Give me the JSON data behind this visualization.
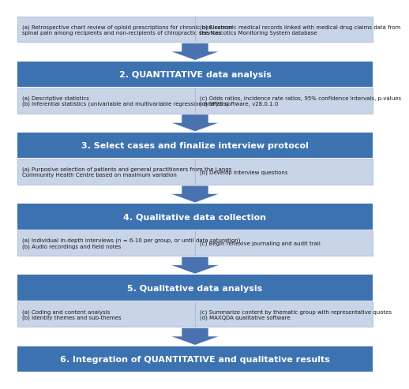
{
  "bg_color": "#ffffff",
  "box_dark_color": "#3d72b0",
  "box_light_color": "#c8d4e8",
  "box_light_border": "#a0b0cc",
  "arrow_color": "#4a72b0",
  "text_dark": "#ffffff",
  "text_light": "#1a1a1a",
  "title_fontsize": 8.0,
  "note_fontsize": 5.0,
  "top_left_note": "(a) Retrospective chart review of opioid prescriptions for chronic non-cancer\nspinal pain among recipients and non-recipients of chiropractic services",
  "top_right_note": "(b) Electronic medical records linked with medical drug claims data from\nthe Narcotics Monitoring System database",
  "steps": [
    {
      "title": "2. QUANTITATIVE data analysis",
      "left_notes": "(a) Descriptive statistics\n(b) Inferential statistics (univariable and multivariable regression analysis)",
      "right_notes": "(c) Odds ratios, incidence rate ratios, 95% confidence intervals, p-values\n(d) SPSS software, v28.0.1.0"
    },
    {
      "title": "3. Select cases and finalize interview protocol",
      "left_notes": "(a) Purposive selection of patients and general practitioners from the Langs\nCommunity Health Centre based on maximum variation",
      "right_notes": "(b) Develop interview questions"
    },
    {
      "title": "4. Qualitative data collection",
      "left_notes": "(a) Individual in-depth interviews (n = 6-10 per group, or until data saturation)\n(b) Audio recordings and field notes",
      "right_notes": "(c) Begin reflexive journaling and audit trail"
    },
    {
      "title": "5. Qualitative data analysis",
      "left_notes": "(a) Coding and content analysis\n(b) Identify themes and sub-themes",
      "right_notes": "(c) Summarize content by thematic group with representative quotes\n(d) MAXQDA qualitative software"
    },
    {
      "title": "6. Integration of QUANTITATIVE and qualitative results",
      "left_notes": "",
      "right_notes": ""
    }
  ]
}
